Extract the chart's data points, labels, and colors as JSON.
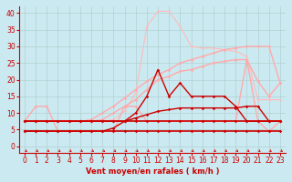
{
  "xlabel": "Vent moyen/en rafales ( km/h )",
  "background_color": "#cbe9f0",
  "grid_color": "#aacccc",
  "x_values": [
    0,
    1,
    2,
    3,
    4,
    5,
    6,
    7,
    8,
    9,
    10,
    11,
    12,
    13,
    14,
    15,
    16,
    17,
    18,
    19,
    20,
    21,
    22,
    23
  ],
  "ylim": [
    -2,
    42
  ],
  "xlim": [
    -0.5,
    23.5
  ],
  "yticks": [
    0,
    5,
    10,
    15,
    20,
    25,
    30,
    35,
    40
  ],
  "lines": [
    {
      "y": [
        4.5,
        4.5,
        4.5,
        4.5,
        4.5,
        4.5,
        4.5,
        4.5,
        4.5,
        4.5,
        4.5,
        4.5,
        4.5,
        4.5,
        4.5,
        4.5,
        4.5,
        4.5,
        4.5,
        4.5,
        4.5,
        4.5,
        4.5,
        4.5
      ],
      "color": "#cc0000",
      "lw": 1.2,
      "marker": "D",
      "ms": 1.8,
      "zorder": 5
    },
    {
      "y": [
        7.5,
        7.5,
        7.5,
        7.5,
        7.5,
        7.5,
        7.5,
        7.5,
        7.5,
        7.5,
        7.5,
        7.5,
        7.5,
        7.5,
        7.5,
        7.5,
        7.5,
        7.5,
        7.5,
        7.5,
        7.5,
        7.5,
        7.5,
        7.5
      ],
      "color": "#cc0000",
      "lw": 1.2,
      "marker": "D",
      "ms": 1.8,
      "zorder": 5
    },
    {
      "y": [
        7.5,
        7.5,
        7.5,
        7.5,
        7.5,
        7.5,
        7.5,
        7.5,
        7.5,
        7.5,
        8.5,
        9.5,
        10.5,
        11.0,
        11.5,
        11.5,
        11.5,
        11.5,
        11.5,
        11.5,
        12.0,
        12.0,
        7.5,
        7.5
      ],
      "color": "#cc0000",
      "lw": 1.0,
      "marker": "D",
      "ms": 1.8,
      "zorder": 4
    },
    {
      "y": [
        4.5,
        4.5,
        4.5,
        4.5,
        4.5,
        4.5,
        4.5,
        4.5,
        5.5,
        7.5,
        10.0,
        15.0,
        23.0,
        15.0,
        19.0,
        15.0,
        15.0,
        15.0,
        15.0,
        12.0,
        7.5,
        7.5,
        7.5,
        7.5
      ],
      "color": "#cc0000",
      "lw": 1.0,
      "marker": "D",
      "ms": 1.8,
      "zorder": 4
    },
    {
      "y": [
        7.5,
        12.0,
        12.0,
        4.5,
        4.5,
        4.5,
        4.5,
        4.5,
        4.5,
        12.0,
        12.0,
        7.5,
        7.5,
        7.5,
        7.5,
        7.5,
        7.5,
        7.5,
        7.5,
        7.5,
        26.0,
        7.5,
        4.5,
        7.5
      ],
      "color": "#ffaaaa",
      "lw": 1.0,
      "marker": "D",
      "ms": 1.8,
      "zorder": 3
    },
    {
      "y": [
        7.5,
        7.5,
        7.5,
        7.5,
        7.5,
        7.5,
        8.0,
        10.0,
        12.0,
        14.5,
        17.0,
        19.5,
        21.5,
        23.0,
        25.0,
        26.0,
        27.0,
        28.0,
        29.0,
        29.5,
        30.0,
        30.0,
        30.0,
        19.0
      ],
      "color": "#ffaaaa",
      "lw": 1.0,
      "marker": "D",
      "ms": 1.8,
      "zorder": 3
    },
    {
      "y": [
        7.5,
        7.5,
        7.5,
        7.5,
        7.5,
        7.5,
        7.5,
        8.0,
        10.0,
        12.0,
        14.0,
        17.0,
        20.0,
        21.0,
        22.5,
        23.0,
        24.0,
        25.0,
        25.5,
        26.0,
        26.0,
        19.5,
        15.0,
        19.0
      ],
      "color": "#ffaaaa",
      "lw": 1.0,
      "marker": "D",
      "ms": 1.8,
      "zorder": 3
    },
    {
      "y": [
        7.5,
        7.5,
        7.5,
        7.5,
        7.5,
        7.5,
        7.5,
        7.5,
        8.0,
        10.5,
        16.0,
        36.0,
        40.5,
        40.5,
        36.0,
        30.0,
        29.5,
        29.5,
        29.0,
        28.5,
        27.0,
        14.0,
        14.0,
        14.0
      ],
      "color": "#ffbbbb",
      "lw": 0.8,
      "marker": "D",
      "ms": 1.5,
      "zorder": 2
    }
  ],
  "axis_color": "#cc0000",
  "tick_color": "#cc0000",
  "tick_fontsize": 5.5,
  "xlabel_fontsize": 6.0
}
